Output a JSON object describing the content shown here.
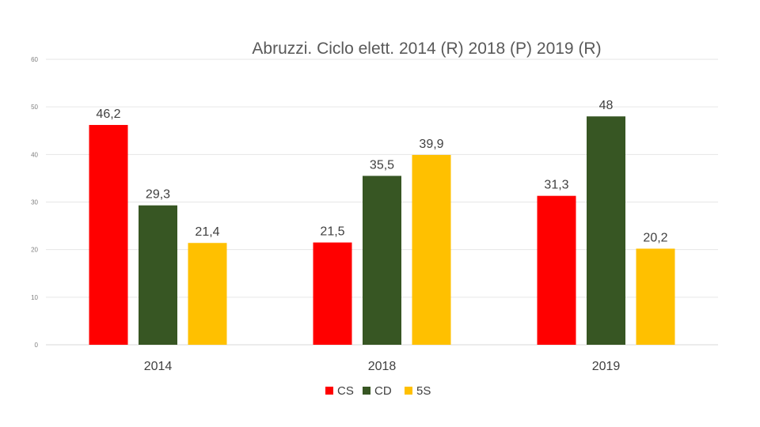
{
  "chart_data": {
    "type": "bar",
    "title": "Abruzzi. Ciclo elett. 2014 (R) 2018 (P) 2019 (R)",
    "xlabel": "",
    "ylabel": "",
    "categories": [
      "2014",
      "2018",
      "2019"
    ],
    "ylim": [
      0,
      60
    ],
    "yticks": [
      "0",
      "10",
      "20",
      "30",
      "40",
      "50",
      "60"
    ],
    "grid": true,
    "legend_position": "bottom",
    "series": [
      {
        "name": "CS",
        "color": "#ff0000",
        "values": [
          46.2,
          21.5,
          31.3
        ],
        "labels": [
          "46,2",
          "21,5",
          "31,3"
        ]
      },
      {
        "name": "CD",
        "color": "#375623",
        "values": [
          29.3,
          35.5,
          48
        ],
        "labels": [
          "29,3",
          "35,5",
          "48"
        ]
      },
      {
        "name": "5S",
        "color": "#ffc000",
        "values": [
          21.4,
          39.9,
          20.2
        ],
        "labels": [
          "21,4",
          "39,9",
          "20,2"
        ]
      }
    ]
  }
}
